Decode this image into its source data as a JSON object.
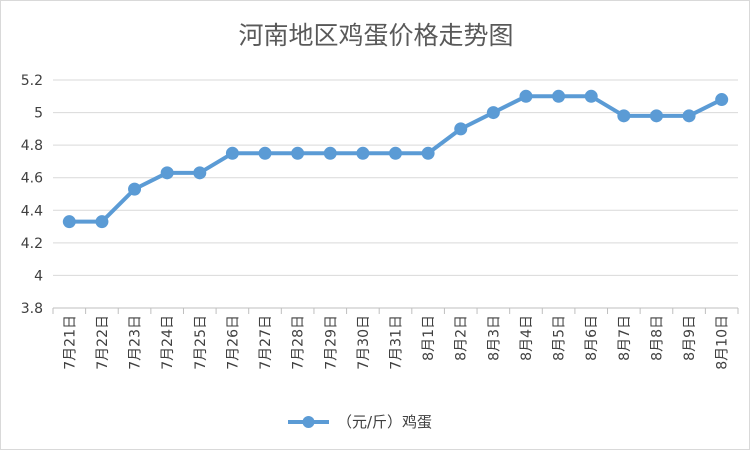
{
  "chart_data": {
    "type": "line",
    "title": "河南地区鸡蛋价格走势图",
    "categories": [
      "7月21日",
      "7月22日",
      "7月23日",
      "7月24日",
      "7月25日",
      "7月26日",
      "7月27日",
      "7月28日",
      "7月29日",
      "7月30日",
      "7月31日",
      "8月1日",
      "8月2日",
      "8月3日",
      "8月4日",
      "8月5日",
      "8月6日",
      "8月7日",
      "8月8日",
      "8月9日",
      "8月10日"
    ],
    "series": [
      {
        "name": "（元/斤）鸡蛋",
        "values": [
          4.33,
          4.33,
          4.53,
          4.63,
          4.63,
          4.75,
          4.75,
          4.75,
          4.75,
          4.75,
          4.75,
          4.75,
          4.9,
          5.0,
          5.1,
          5.1,
          5.1,
          4.98,
          4.98,
          4.98,
          5.08
        ]
      }
    ],
    "ylim": [
      3.8,
      5.2
    ],
    "yticks": [
      "3.8",
      "4",
      "4.2",
      "4.4",
      "4.6",
      "4.8",
      "5",
      "5.2"
    ],
    "grid": true,
    "legend": "bottom",
    "color": "#5b9bd5"
  }
}
